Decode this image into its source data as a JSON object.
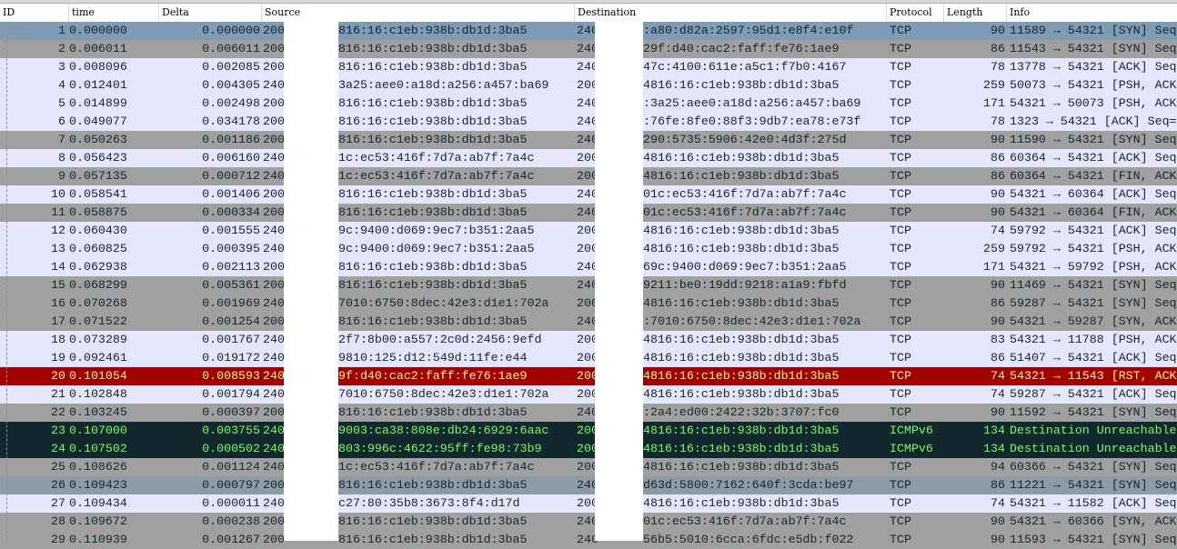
{
  "columns": {
    "id": "ID",
    "time": "time",
    "delta": "Delta",
    "source": "Source",
    "destination": "Destination",
    "protocol": "Protocol",
    "length": "Length",
    "info": "Info"
  },
  "colors": {
    "blue": {
      "bg": "#7f9bb5",
      "fg": "#12272e"
    },
    "gray": {
      "bg": "#a0a0a0",
      "fg": "#12272e"
    },
    "lav": {
      "bg": "#e6e6fa",
      "fg": "#12272e"
    },
    "red": {
      "bg": "#a40000",
      "fg": "#fffc9c"
    },
    "dark": {
      "bg": "#12272e",
      "fg": "#78ff5d"
    },
    "slate": {
      "bg": "#8e9ba6",
      "fg": "#12272e"
    }
  },
  "packets": [
    {
      "id": "1",
      "time": "0.000000",
      "delta": "0.000000",
      "src_pre": "200",
      "src": "816:16:c1eb:938b:db1d:3ba5",
      "dst_pre": "240",
      "dst": ":a80:d82a:2597:95d1:e8f4:e10f",
      "proto": "TCP",
      "len": "90",
      "info": "11589 → 54321 [SYN] Seq",
      "style": "blue"
    },
    {
      "id": "2",
      "time": "0.006011",
      "delta": "0.006011",
      "src_pre": "200",
      "src": "816:16:c1eb:938b:db1d:3ba5",
      "dst_pre": "240",
      "dst": "29f:d40:cac2:faff:fe76:1ae9",
      "proto": "TCP",
      "len": "86",
      "info": "11543 → 54321 [SYN] Seq",
      "style": "gray"
    },
    {
      "id": "3",
      "time": "0.008096",
      "delta": "0.002085",
      "src_pre": "200",
      "src": "816:16:c1eb:938b:db1d:3ba5",
      "dst_pre": "240",
      "dst": "47c:4100:611e:a5c1:f7b0:4167",
      "proto": "TCP",
      "len": "78",
      "info": "13778 → 54321 [ACK] Seq",
      "style": "lav"
    },
    {
      "id": "4",
      "time": "0.012401",
      "delta": "0.004305",
      "src_pre": "240",
      "src": "3a25:aee0:a18d:a256:a457:ba69",
      "dst_pre": "200",
      "dst": "4816:16:c1eb:938b:db1d:3ba5",
      "proto": "TCP",
      "len": "259",
      "info": "50073 → 54321 [PSH, ACK",
      "style": "lav"
    },
    {
      "id": "5",
      "time": "0.014899",
      "delta": "0.002498",
      "src_pre": "200",
      "src": "816:16:c1eb:938b:db1d:3ba5",
      "dst_pre": "240",
      "dst": ":3a25:aee0:a18d:a256:a457:ba69",
      "proto": "TCP",
      "len": "171",
      "info": "54321 → 50073 [PSH, ACK",
      "style": "lav"
    },
    {
      "id": "6",
      "time": "0.049077",
      "delta": "0.034178",
      "src_pre": "200",
      "src": "816:16:c1eb:938b:db1d:3ba5",
      "dst_pre": "240",
      "dst": ":76fe:8fe0:88f3:9db7:ea78:e73f",
      "proto": "TCP",
      "len": "78",
      "info": "1323 → 54321 [ACK] Seq=",
      "style": "lav"
    },
    {
      "id": "7",
      "time": "0.050263",
      "delta": "0.001186",
      "src_pre": "200",
      "src": "816:16:c1eb:938b:db1d:3ba5",
      "dst_pre": "240",
      "dst": "290:5735:5906:42e0:4d3f:275d",
      "proto": "TCP",
      "len": "90",
      "info": "11590 → 54321 [SYN] Seq",
      "style": "gray"
    },
    {
      "id": "8",
      "time": "0.056423",
      "delta": "0.006160",
      "src_pre": "240",
      "src": "1c:ec53:416f:7d7a:ab7f:7a4c",
      "dst_pre": "200",
      "dst": "4816:16:c1eb:938b:db1d:3ba5",
      "proto": "TCP",
      "len": "86",
      "info": "60364 → 54321 [ACK] Seq",
      "style": "lav"
    },
    {
      "id": "9",
      "time": "0.057135",
      "delta": "0.000712",
      "src_pre": "240",
      "src": "1c:ec53:416f:7d7a:ab7f:7a4c",
      "dst_pre": "200",
      "dst": "4816:16:c1eb:938b:db1d:3ba5",
      "proto": "TCP",
      "len": "86",
      "info": "60364 → 54321 [FIN, ACK",
      "style": "gray"
    },
    {
      "id": "10",
      "time": "0.058541",
      "delta": "0.001406",
      "src_pre": "200",
      "src": "816:16:c1eb:938b:db1d:3ba5",
      "dst_pre": "240",
      "dst": "01c:ec53:416f:7d7a:ab7f:7a4c",
      "proto": "TCP",
      "len": "90",
      "info": "54321 → 60364 [ACK] Seq",
      "style": "lav"
    },
    {
      "id": "11",
      "time": "0.058875",
      "delta": "0.000334",
      "src_pre": "200",
      "src": "816:16:c1eb:938b:db1d:3ba5",
      "dst_pre": "240",
      "dst": "01c:ec53:416f:7d7a:ab7f:7a4c",
      "proto": "TCP",
      "len": "90",
      "info": "54321 → 60364 [FIN, ACK",
      "style": "gray"
    },
    {
      "id": "12",
      "time": "0.060430",
      "delta": "0.001555",
      "src_pre": "240",
      "src": "9c:9400:d069:9ec7:b351:2aa5",
      "dst_pre": "200",
      "dst": "4816:16:c1eb:938b:db1d:3ba5",
      "proto": "TCP",
      "len": "74",
      "info": "59792 → 54321 [ACK] Seq",
      "style": "lav"
    },
    {
      "id": "13",
      "time": "0.060825",
      "delta": "0.000395",
      "src_pre": "240",
      "src": "9c:9400:d069:9ec7:b351:2aa5",
      "dst_pre": "200",
      "dst": "4816:16:c1eb:938b:db1d:3ba5",
      "proto": "TCP",
      "len": "259",
      "info": "59792 → 54321 [PSH, ACK",
      "style": "lav"
    },
    {
      "id": "14",
      "time": "0.062938",
      "delta": "0.002113",
      "src_pre": "200",
      "src": "816:16:c1eb:938b:db1d:3ba5",
      "dst_pre": "240",
      "dst": "69c:9400:d069:9ec7:b351:2aa5",
      "proto": "TCP",
      "len": "171",
      "info": "54321 → 59792 [PSH, ACK",
      "style": "lav"
    },
    {
      "id": "15",
      "time": "0.068299",
      "delta": "0.005361",
      "src_pre": "200",
      "src": "816:16:c1eb:938b:db1d:3ba5",
      "dst_pre": "240",
      "dst": "9211:be0:19dd:9218:a1a9:fbfd",
      "proto": "TCP",
      "len": "90",
      "info": "11469 → 54321 [SYN] Seq",
      "style": "gray"
    },
    {
      "id": "16",
      "time": "0.070268",
      "delta": "0.001969",
      "src_pre": "240",
      "src": "7010:6750:8dec:42e3:d1e1:702a",
      "dst_pre": "200",
      "dst": "4816:16:c1eb:938b:db1d:3ba5",
      "proto": "TCP",
      "len": "86",
      "info": "59287 → 54321 [SYN] Seq",
      "style": "gray"
    },
    {
      "id": "17",
      "time": "0.071522",
      "delta": "0.001254",
      "src_pre": "200",
      "src": "816:16:c1eb:938b:db1d:3ba5",
      "dst_pre": "240",
      "dst": ":7010:6750:8dec:42e3:d1e1:702a",
      "proto": "TCP",
      "len": "90",
      "info": "54321 → 59287 [SYN, ACK",
      "style": "gray"
    },
    {
      "id": "18",
      "time": "0.073289",
      "delta": "0.001767",
      "src_pre": "240",
      "src": "2f7:8b00:a557:2c0d:2456:9efd",
      "dst_pre": "200",
      "dst": "4816:16:c1eb:938b:db1d:3ba5",
      "proto": "TCP",
      "len": "83",
      "info": "54321 → 11788 [PSH, ACK",
      "style": "lav"
    },
    {
      "id": "19",
      "time": "0.092461",
      "delta": "0.019172",
      "src_pre": "240",
      "src": "9810:125:d12:549d:11fe:e44",
      "dst_pre": "200",
      "dst": "4816:16:c1eb:938b:db1d:3ba5",
      "proto": "TCP",
      "len": "86",
      "info": "51407 → 54321 [ACK] Seq",
      "style": "lav"
    },
    {
      "id": "20",
      "time": "0.101054",
      "delta": "0.008593",
      "src_pre": "240",
      "src": "9f:d40:cac2:faff:fe76:1ae9",
      "dst_pre": "200",
      "dst": "4816:16:c1eb:938b:db1d:3ba5",
      "proto": "TCP",
      "len": "74",
      "info": "54321 → 11543 [RST, ACK",
      "style": "red"
    },
    {
      "id": "21",
      "time": "0.102848",
      "delta": "0.001794",
      "src_pre": "240",
      "src": "7010:6750:8dec:42e3:d1e1:702a",
      "dst_pre": "200",
      "dst": "4816:16:c1eb:938b:db1d:3ba5",
      "proto": "TCP",
      "len": "74",
      "info": "59287 → 54321 [ACK] Seq",
      "style": "lav"
    },
    {
      "id": "22",
      "time": "0.103245",
      "delta": "0.000397",
      "src_pre": "200",
      "src": "816:16:c1eb:938b:db1d:3ba5",
      "dst_pre": "240",
      "dst": ":2a4:ed00:2422:32b:3707:fc0",
      "proto": "TCP",
      "len": "90",
      "info": "11592 → 54321 [SYN] Seq",
      "style": "gray"
    },
    {
      "id": "23",
      "time": "0.107000",
      "delta": "0.003755",
      "src_pre": "240",
      "src": "9003:ca38:808e:db24:6929:6aac",
      "dst_pre": "200",
      "dst": "4816:16:c1eb:938b:db1d:3ba5",
      "proto": "ICMPv6",
      "len": "134",
      "info": "Destination Unreachable",
      "style": "dark"
    },
    {
      "id": "24",
      "time": "0.107502",
      "delta": "0.000502",
      "src_pre": "240",
      "src": "803:996c:4622:95ff:fe98:73b9",
      "dst_pre": "200",
      "dst": "4816:16:c1eb:938b:db1d:3ba5",
      "proto": "ICMPv6",
      "len": "134",
      "info": "Destination Unreachable",
      "style": "dark"
    },
    {
      "id": "25",
      "time": "0.108626",
      "delta": "0.001124",
      "src_pre": "240",
      "src": "1c:ec53:416f:7d7a:ab7f:7a4c",
      "dst_pre": "200",
      "dst": "4816:16:c1eb:938b:db1d:3ba5",
      "proto": "TCP",
      "len": "94",
      "info": "60366 → 54321 [SYN] Seq",
      "style": "gray"
    },
    {
      "id": "26",
      "time": "0.109423",
      "delta": "0.000797",
      "src_pre": "200",
      "src": "816:16:c1eb:938b:db1d:3ba5",
      "dst_pre": "240",
      "dst": "d63d:5800:7162:640f:3cda:be97",
      "proto": "TCP",
      "len": "86",
      "info": "11221 → 54321 [SYN] Seq",
      "style": "slate"
    },
    {
      "id": "27",
      "time": "0.109434",
      "delta": "0.000011",
      "src_pre": "240",
      "src": "c27:80:35b8:3673:8f4:d17d",
      "dst_pre": "200",
      "dst": "4816:16:c1eb:938b:db1d:3ba5",
      "proto": "TCP",
      "len": "74",
      "info": "54321 → 11582 [ACK] Seq",
      "style": "lav"
    },
    {
      "id": "28",
      "time": "0.109672",
      "delta": "0.000238",
      "src_pre": "200",
      "src": "816:16:c1eb:938b:db1d:3ba5",
      "dst_pre": "240",
      "dst": "01c:ec53:416f:7d7a:ab7f:7a4c",
      "proto": "TCP",
      "len": "90",
      "info": "54321 → 60366 [SYN, ACK",
      "style": "gray"
    },
    {
      "id": "29",
      "time": "0.110939",
      "delta": "0.001267",
      "src_pre": "200",
      "src": "816:16:c1eb:938b:db1d:3ba5",
      "dst_pre": "240",
      "dst": "56b5:5010:6cca:6fdc:e5db:f022",
      "proto": "TCP",
      "len": "90",
      "info": "11593 → 54321 [SYN] Seq",
      "style": "gray"
    }
  ]
}
